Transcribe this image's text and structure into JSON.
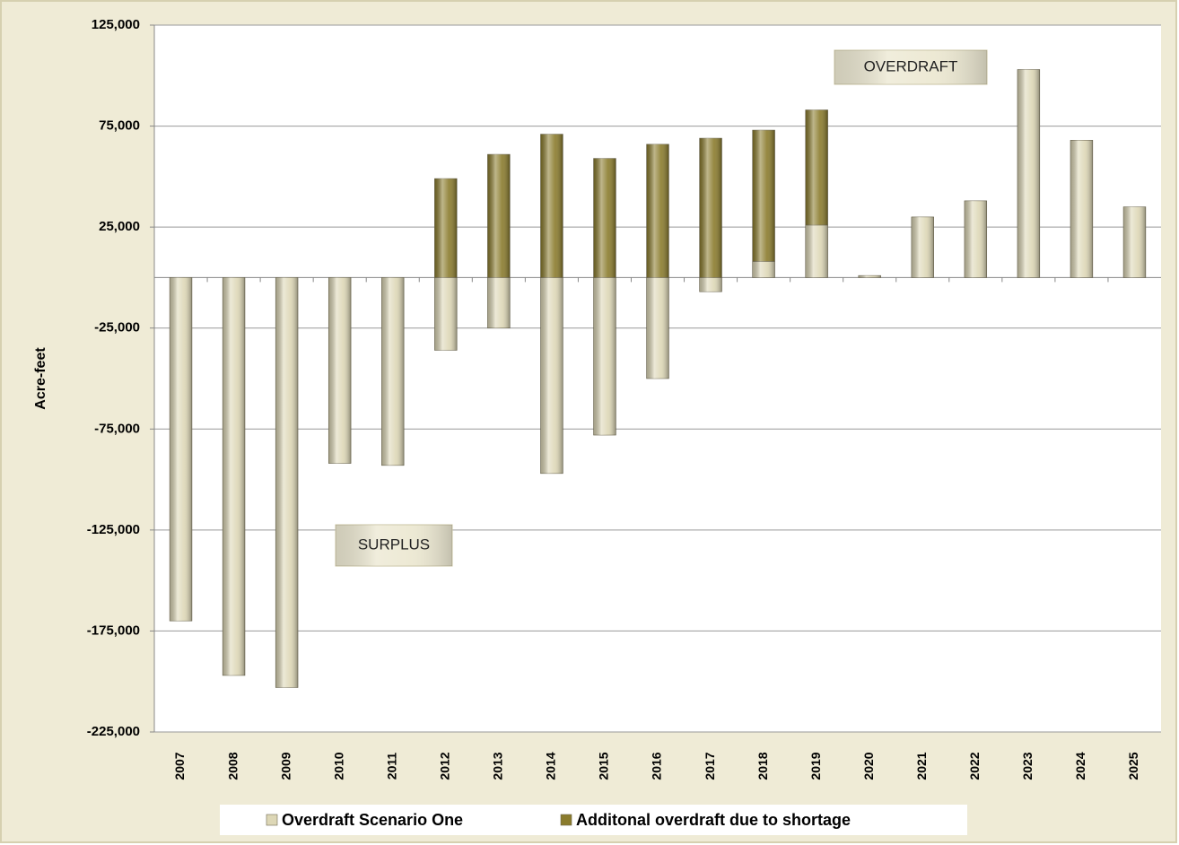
{
  "chart_data": {
    "type": "stacked-bar",
    "y_label": "Acre-feet",
    "categories": [
      "2007",
      "2008",
      "2009",
      "2010",
      "2011",
      "2012",
      "2013",
      "2014",
      "2015",
      "2016",
      "2017",
      "2018",
      "2019",
      "2020",
      "2021",
      "2022",
      "2023",
      "2024",
      "2025"
    ],
    "series": [
      {
        "name": "Overdraft Scenario One",
        "color": "#ddd7b6",
        "values": [
          -170000,
          -197000,
          -203000,
          -92000,
          -93000,
          -36000,
          -25000,
          -97000,
          -78000,
          -50000,
          -7000,
          8000,
          26000,
          1000,
          30000,
          38000,
          103000,
          68000,
          35000
        ]
      },
      {
        "name": "Additonal overdraft due to shortage",
        "color": "#8a7b2c",
        "values": [
          0,
          0,
          0,
          0,
          0,
          49000,
          61000,
          71000,
          59000,
          66000,
          69000,
          65000,
          57000,
          0,
          0,
          0,
          0,
          0,
          0
        ]
      }
    ],
    "ylim": [
      -225000,
      125000
    ],
    "yticks": [
      {
        "value": -225000,
        "label": "-225,000"
      },
      {
        "value": -175000,
        "label": "-175,000"
      },
      {
        "value": -125000,
        "label": "-125,000"
      },
      {
        "value": -75000,
        "label": "-75,000"
      },
      {
        "value": -25000,
        "label": "-25,000"
      },
      {
        "value": 25000,
        "label": "25,000"
      },
      {
        "value": 75000,
        "label": "75,000"
      },
      {
        "value": 125000,
        "label": "125,000"
      }
    ],
    "grid": true,
    "annotations": [
      "OVERDRAFT",
      "SURPLUS"
    ]
  }
}
